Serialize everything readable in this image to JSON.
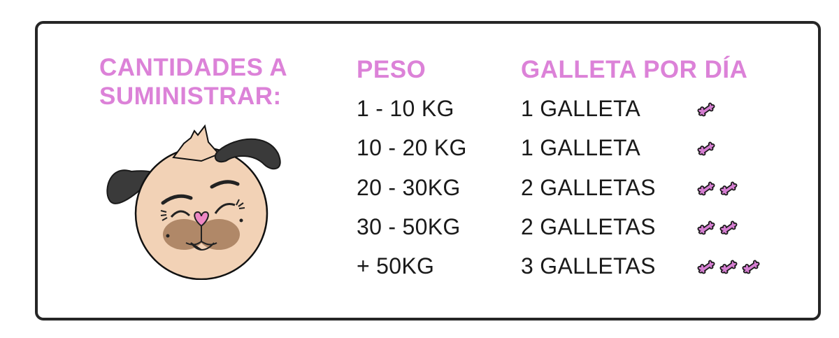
{
  "title": "CANTIDADES A SUMINISTRAR:",
  "title_line1": "CANTIDADES A",
  "title_line2": "SUMINISTRAR:",
  "headers": {
    "weight": "PESO",
    "biscuits": "GALLETA POR DÍA"
  },
  "rows": [
    {
      "weight": "1 - 10 KG",
      "biscuits": "1 GALLETA",
      "bone_count": 1
    },
    {
      "weight": "10 - 20 KG",
      "biscuits": "1 GALLETA",
      "bone_count": 1
    },
    {
      "weight": "20 - 30KG",
      "biscuits": "2 GALLETAS",
      "bone_count": 2
    },
    {
      "weight": "30 - 50KG",
      "biscuits": "2 GALLETAS",
      "bone_count": 2
    },
    {
      "weight": "+ 50KG",
      "biscuits": "3 GALLETAS",
      "bone_count": 3
    }
  ],
  "icons": {
    "illustration": "dog-face-icon",
    "bone": "bone-icon"
  },
  "colors": {
    "accent": "#dc82d8",
    "border": "#262626",
    "text": "#1a1a1a",
    "dog_skin": "#f2d2b6",
    "dog_ears": "#3a3a3a"
  }
}
